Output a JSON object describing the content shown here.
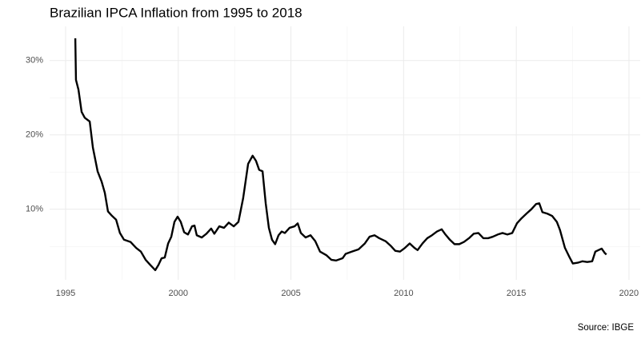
{
  "chart_data": {
    "type": "line",
    "title": "Brazilian IPCA Inflation from 1995 to 2018",
    "caption": "Source: IBGE",
    "xlim": [
      1994.29,
      2020.5
    ],
    "ylim": [
      0.5,
      34.6
    ],
    "xticks": [
      1995,
      2000,
      2005,
      2010,
      2015,
      2020
    ],
    "yticks": [
      {
        "value": 10,
        "label": "10%"
      },
      {
        "value": 20,
        "label": "20%"
      },
      {
        "value": 30,
        "label": "30%"
      }
    ],
    "xminor": [
      1997.5,
      2002.5,
      2007.5,
      2012.5,
      2017.5
    ],
    "yminor": [
      5,
      15,
      25
    ],
    "grid": true,
    "color": "#000000",
    "x": [
      1995.43,
      1995.46,
      1995.57,
      1995.71,
      1995.85,
      1996.07,
      1996.21,
      1996.42,
      1996.6,
      1996.74,
      1996.88,
      1997.06,
      1997.24,
      1997.41,
      1997.59,
      1997.88,
      1998.13,
      1998.34,
      1998.55,
      1998.76,
      1998.98,
      1999.12,
      1999.26,
      1999.4,
      1999.55,
      1999.69,
      1999.83,
      1999.97,
      2000.11,
      2000.26,
      2000.43,
      2000.61,
      2000.72,
      2000.82,
      2001.04,
      2001.25,
      2001.46,
      2001.6,
      2001.82,
      2002.03,
      2002.24,
      2002.46,
      2002.67,
      2002.88,
      2003.1,
      2003.3,
      2003.45,
      2003.59,
      2003.74,
      2003.88,
      2004.02,
      2004.16,
      2004.3,
      2004.45,
      2004.59,
      2004.73,
      2004.94,
      2005.16,
      2005.3,
      2005.44,
      2005.65,
      2005.87,
      2006.08,
      2006.29,
      2006.58,
      2006.79,
      2007.0,
      2007.29,
      2007.43,
      2007.71,
      2008.0,
      2008.28,
      2008.49,
      2008.71,
      2008.92,
      2009.2,
      2009.42,
      2009.63,
      2009.84,
      2010.06,
      2010.27,
      2010.48,
      2010.62,
      2010.84,
      2011.05,
      2011.26,
      2011.48,
      2011.69,
      2011.83,
      2012.05,
      2012.26,
      2012.47,
      2012.68,
      2012.9,
      2013.11,
      2013.32,
      2013.54,
      2013.75,
      2013.96,
      2014.18,
      2014.39,
      2014.6,
      2014.82,
      2015.03,
      2015.24,
      2015.45,
      2015.67,
      2015.88,
      2016.02,
      2016.16,
      2016.38,
      2016.59,
      2016.8,
      2016.94,
      2017.16,
      2017.37,
      2017.51,
      2017.73,
      2017.94,
      2018.15,
      2018.37,
      2018.51,
      2018.65,
      2018.79,
      2018.93,
      2019.0
    ],
    "values": [
      33.0,
      27.4,
      26.1,
      23.1,
      22.3,
      21.8,
      18.3,
      15.1,
      13.7,
      12.2,
      9.7,
      9.1,
      8.6,
      6.8,
      5.9,
      5.6,
      4.8,
      4.3,
      3.2,
      2.5,
      1.8,
      2.5,
      3.4,
      3.5,
      5.4,
      6.3,
      8.3,
      9.0,
      8.3,
      6.9,
      6.6,
      7.7,
      7.8,
      6.5,
      6.2,
      6.7,
      7.4,
      6.7,
      7.7,
      7.5,
      8.2,
      7.7,
      8.3,
      11.5,
      16.1,
      17.2,
      16.5,
      15.3,
      15.1,
      10.8,
      7.5,
      5.9,
      5.3,
      6.5,
      7.0,
      6.8,
      7.5,
      7.7,
      8.1,
      6.8,
      6.2,
      6.5,
      5.7,
      4.3,
      3.8,
      3.2,
      3.1,
      3.4,
      4.0,
      4.3,
      4.6,
      5.4,
      6.3,
      6.5,
      6.1,
      5.7,
      5.1,
      4.4,
      4.3,
      4.8,
      5.4,
      4.8,
      4.5,
      5.4,
      6.1,
      6.5,
      7.0,
      7.3,
      6.7,
      5.9,
      5.3,
      5.3,
      5.6,
      6.1,
      6.7,
      6.8,
      6.1,
      6.1,
      6.3,
      6.6,
      6.8,
      6.6,
      6.8,
      8.1,
      8.8,
      9.4,
      10.0,
      10.7,
      10.8,
      9.6,
      9.4,
      9.1,
      8.3,
      7.2,
      4.8,
      3.5,
      2.7,
      2.8,
      3.0,
      2.9,
      3.0,
      4.3,
      4.5,
      4.7,
      4.1,
      3.9
    ]
  }
}
